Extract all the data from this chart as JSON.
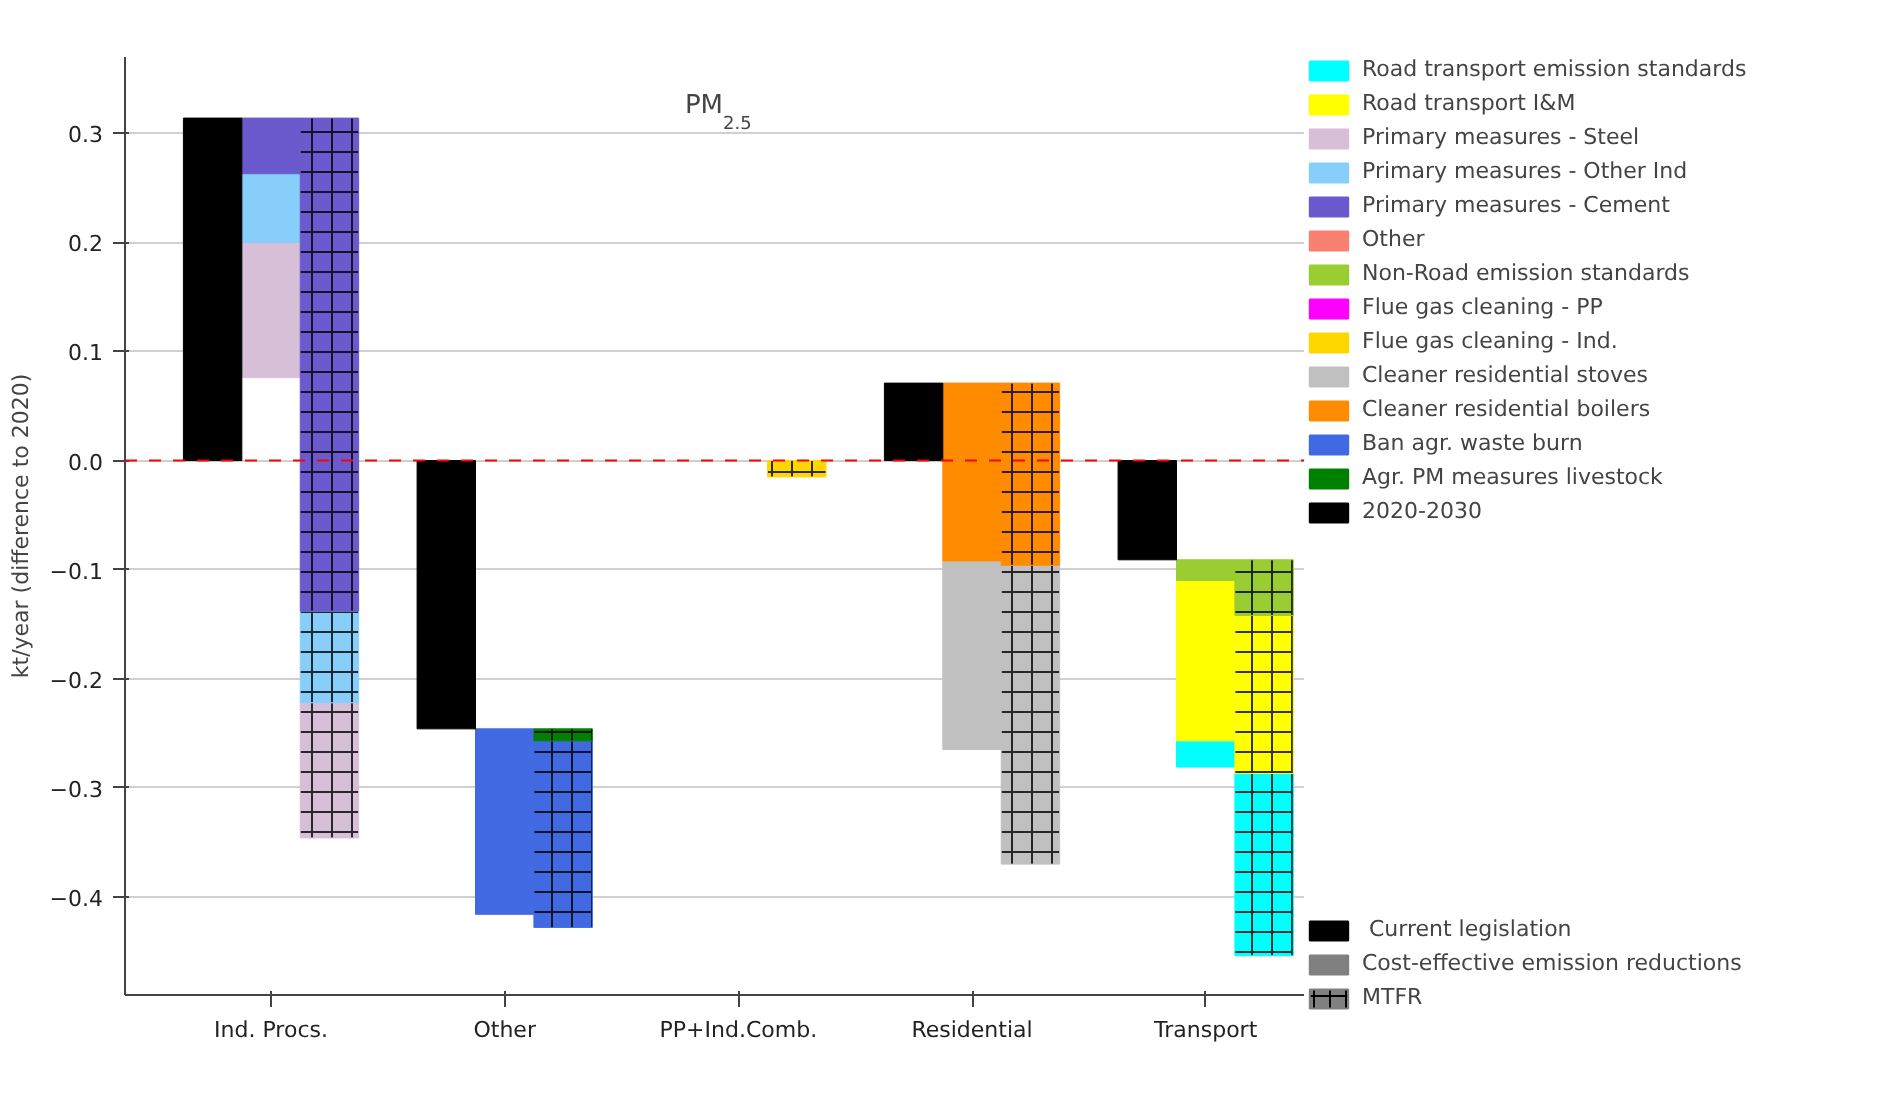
{
  "chart_data": {
    "type": "bar",
    "title": "PM$_{2.5}$",
    "ylabel": "kt/year (difference to 2020)",
    "categories": [
      null,
      "Ind. Procs.",
      null,
      null,
      "Other",
      null,
      null,
      "PP+Ind.Comb.",
      null,
      null,
      "Residential",
      null,
      null,
      "Transport",
      null
    ],
    "ylim": [
      -0.49,
      0.37
    ],
    "yticks": [
      {
        "value": -0.4,
        "label": "−0.4"
      },
      {
        "value": -0.3,
        "label": "−0.3"
      },
      {
        "value": -0.2,
        "label": "−0.2"
      },
      {
        "value": -0.1,
        "label": "−0.1"
      },
      {
        "value": 0,
        "label": "0.0"
      },
      {
        "value": 0.1,
        "label": "0.1"
      },
      {
        "value": 0.2,
        "label": "0.2"
      },
      {
        "value": 0.3,
        "label": "0.3"
      }
    ],
    "grid": "y",
    "legend": "right",
    "ref_lines": [
      {
        "axis": "y",
        "value": 0,
        "label": null,
        "color": "#ff0000",
        "line_style": "dashed"
      }
    ],
    "series": [
      {
        "name": " Current legislation",
        "color": "#000000",
        "marker": "square",
        "values": [
          null,
          null,
          null,
          null,
          null,
          null,
          null,
          null,
          null,
          null,
          null,
          null,
          null,
          null,
          null
        ]
      },
      {
        "name": "Cost-effective emission reductions",
        "color": "#808080",
        "marker": "square",
        "values": [
          null,
          null,
          null,
          null,
          null,
          null,
          null,
          null,
          null,
          null,
          null,
          null,
          null,
          null,
          null
        ]
      },
      {
        "name": "MTFR",
        "color": "#808080",
        "marker": "cross",
        "values": [
          null,
          null,
          null,
          null,
          null,
          null,
          null,
          null,
          null,
          null,
          null,
          null,
          null,
          null,
          null
        ]
      },
      {
        "name": "Road transport emission standards",
        "color": "#00ffff",
        "values": [
          null,
          null,
          null,
          null,
          null,
          null,
          null,
          null,
          null,
          null,
          null,
          null,
          null,
          -0.024,
          -0.167
        ],
        "base": [
          null,
          null,
          null,
          null,
          null,
          null,
          null,
          null,
          null,
          null,
          null,
          null,
          null,
          -0.257,
          -0.287
        ]
      },
      {
        "name": "Road transport I&M",
        "color": "#ffff00",
        "values": [
          null,
          null,
          null,
          null,
          null,
          null,
          null,
          null,
          null,
          null,
          null,
          null,
          null,
          -0.147,
          -0.145
        ],
        "base": [
          null,
          null,
          null,
          null,
          null,
          null,
          null,
          null,
          null,
          null,
          null,
          null,
          null,
          -0.11,
          -0.142
        ]
      },
      {
        "name": "Primary measures - Steel",
        "color": "#d8bfd8",
        "values": [
          null,
          -0.124,
          -0.124,
          null,
          null,
          null,
          null,
          null,
          null,
          null,
          null,
          null,
          null,
          null,
          null
        ],
        "base": [
          null,
          0.2,
          -0.222,
          null,
          null,
          null,
          null,
          null,
          null,
          null,
          null,
          null,
          null,
          null,
          null
        ]
      },
      {
        "name": "Primary measures - Other Ind",
        "color": "#87cefa",
        "values": [
          null,
          -0.063,
          -0.084,
          null,
          null,
          null,
          null,
          null,
          null,
          null,
          null,
          null,
          null,
          null,
          null
        ],
        "base": [
          null,
          0.263,
          -0.138,
          null,
          null,
          null,
          null,
          null,
          null,
          null,
          null,
          null,
          null,
          null,
          null
        ]
      },
      {
        "name": "Primary measures - Cement",
        "color": "#6a5acd",
        "values": [
          null,
          -0.051,
          -0.452,
          null,
          null,
          null,
          null,
          null,
          null,
          null,
          null,
          null,
          null,
          null,
          null
        ],
        "base": [
          null,
          0.314,
          0.314,
          null,
          null,
          null,
          null,
          null,
          null,
          null,
          null,
          null,
          null,
          null,
          null
        ]
      },
      {
        "name": "Other",
        "color": "#fa8072",
        "values": [
          null,
          null,
          null,
          null,
          null,
          null,
          null,
          null,
          null,
          null,
          null,
          null,
          null,
          null,
          null
        ],
        "base": [
          null,
          null,
          null,
          null,
          null,
          null,
          null,
          null,
          null,
          null,
          null,
          null,
          null,
          null,
          null
        ]
      },
      {
        "name": "Non-Road emission standards",
        "color": "#9acd32",
        "values": [
          null,
          null,
          null,
          null,
          null,
          null,
          null,
          null,
          null,
          null,
          null,
          null,
          null,
          -0.019,
          -0.051
        ],
        "base": [
          null,
          null,
          null,
          null,
          null,
          null,
          null,
          null,
          null,
          null,
          null,
          null,
          null,
          -0.091,
          -0.091
        ]
      },
      {
        "name": "Flue gas cleaning - PP",
        "color": "#ff00ff",
        "values": [
          null,
          null,
          null,
          null,
          null,
          null,
          null,
          null,
          null,
          null,
          null,
          null,
          null,
          null,
          null
        ],
        "base": [
          null,
          null,
          null,
          null,
          null,
          null,
          null,
          null,
          null,
          null,
          null,
          null,
          null,
          null,
          null
        ]
      },
      {
        "name": "Flue gas cleaning - Ind.",
        "color": "#ffd700",
        "values": [
          null,
          null,
          null,
          null,
          null,
          null,
          null,
          null,
          -0.015,
          null,
          null,
          null,
          null,
          null,
          null
        ],
        "base": [
          null,
          null,
          null,
          null,
          null,
          null,
          null,
          null,
          0,
          null,
          null,
          null,
          null,
          null,
          null
        ]
      },
      {
        "name": "Cleaner residential stoves",
        "color": "#c0c0c0",
        "values": [
          null,
          null,
          null,
          null,
          null,
          null,
          null,
          null,
          null,
          null,
          -0.173,
          -0.274,
          null,
          null,
          null
        ],
        "base": [
          null,
          null,
          null,
          null,
          null,
          null,
          null,
          null,
          null,
          null,
          -0.092,
          -0.096,
          null,
          null,
          null
        ]
      },
      {
        "name": "Cleaner residential boilers",
        "color": "#ff8c00",
        "values": [
          null,
          null,
          null,
          null,
          null,
          null,
          null,
          null,
          null,
          null,
          -0.163,
          -0.167,
          null,
          null,
          null
        ],
        "base": [
          null,
          null,
          null,
          null,
          null,
          null,
          null,
          null,
          null,
          null,
          0.071,
          0.071,
          null,
          null,
          null
        ]
      },
      {
        "name": "Ban agr. waste burn",
        "color": "#4169e1",
        "values": [
          null,
          null,
          null,
          null,
          -0.17,
          -0.171,
          null,
          null,
          null,
          null,
          null,
          null,
          null,
          null,
          null
        ],
        "base": [
          null,
          null,
          null,
          null,
          -0.246,
          -0.257,
          null,
          null,
          null,
          null,
          null,
          null,
          null,
          null,
          null
        ]
      },
      {
        "name": "Agr. PM measures livestock",
        "color": "#008000",
        "values": [
          null,
          null,
          null,
          null,
          null,
          -0.011,
          null,
          null,
          null,
          null,
          null,
          null,
          null,
          null,
          null
        ],
        "base": [
          null,
          null,
          null,
          null,
          null,
          -0.246,
          null,
          null,
          null,
          null,
          null,
          null,
          null,
          null,
          null
        ]
      },
      {
        "name": "2020-2030",
        "color": "#000000",
        "values": [
          0.314,
          null,
          null,
          -0.246,
          null,
          null,
          null,
          null,
          null,
          0.071,
          null,
          null,
          -0.091,
          null,
          null
        ],
        "base": [
          0,
          null,
          null,
          0,
          null,
          null,
          null,
          null,
          null,
          0,
          null,
          null,
          0,
          null,
          null
        ]
      }
    ]
  }
}
